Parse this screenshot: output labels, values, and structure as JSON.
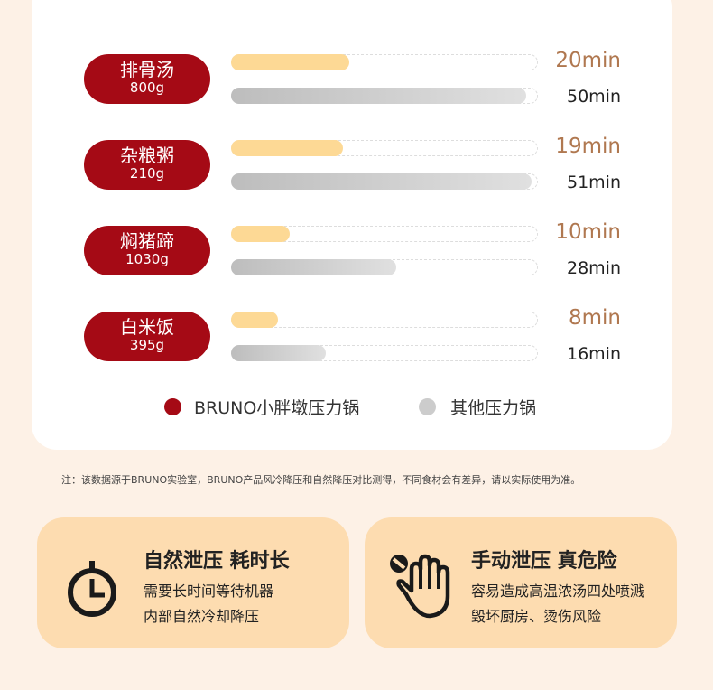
{
  "chart_data": {
    "type": "bar",
    "categories": [
      {
        "name": "排骨汤",
        "weight": "800g"
      },
      {
        "name": "杂粮粥",
        "weight": "210g"
      },
      {
        "name": "焖猪蹄",
        "weight": "1030g"
      },
      {
        "name": "白米饭",
        "weight": "395g"
      }
    ],
    "series": [
      {
        "name": "BRUNO小胖墩压力锅",
        "color": "#a50a15",
        "bar_color": "#fdd995",
        "values": [
          20,
          19,
          10,
          8
        ],
        "labels": [
          "20min",
          "19min",
          "10min",
          "8min"
        ]
      },
      {
        "name": "其他压力锅",
        "color": "#cccccc",
        "bar_color": "#c8c8c8",
        "values": [
          50,
          51,
          28,
          16
        ],
        "labels": [
          "50min",
          "51min",
          "28min",
          "16min"
        ]
      }
    ],
    "unit": "min",
    "orientation": "horizontal",
    "legend": "bottom"
  },
  "note": "注：该数据源于BRUNO实验室，BRUNO产品风冷降压和自然降压对比测得，不同食材会有差异，请以实际使用为准。",
  "cards": [
    {
      "icon": "stopwatch-icon",
      "title": "自然泄压 耗时长",
      "lines": [
        "需要长时间等待机器",
        "内部自然冷却降压"
      ]
    },
    {
      "icon": "stop-hand-icon",
      "title": "手动泄压 真危险",
      "lines": [
        "容易造成高温浓汤四处喷溅",
        "毁坏厨房、烫伤风险"
      ]
    }
  ]
}
